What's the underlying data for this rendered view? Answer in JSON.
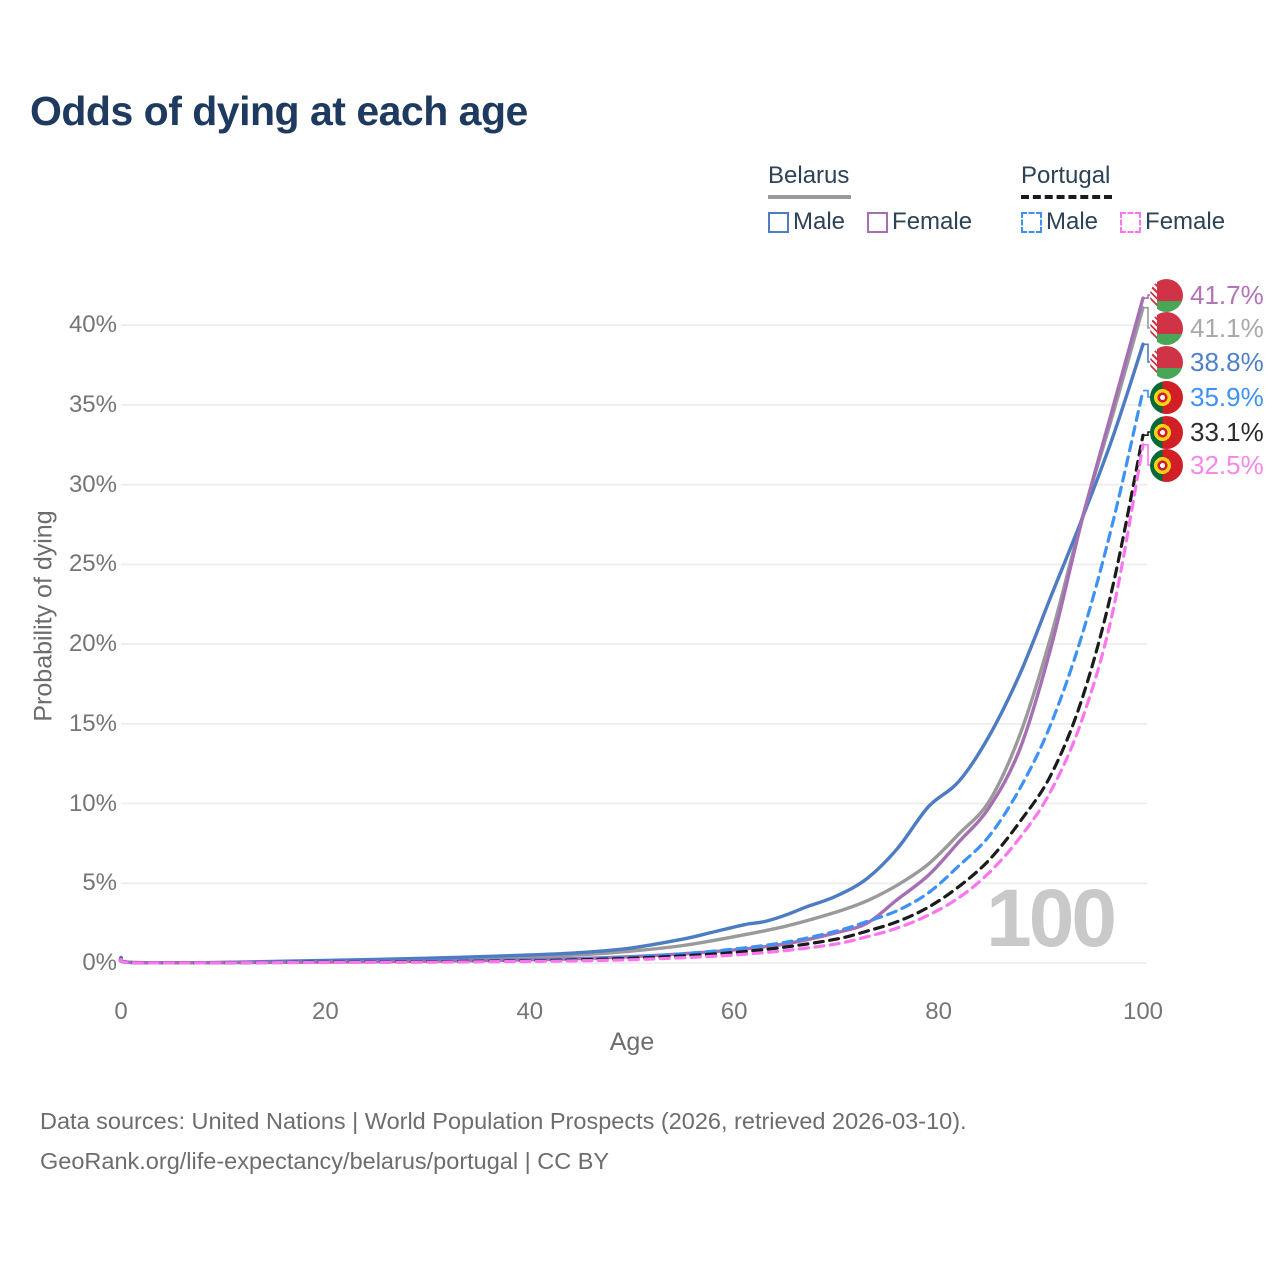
{
  "title": "Odds of dying at each age",
  "legend": {
    "groups": [
      {
        "title": "Belarus",
        "line_style": "solid",
        "combined_color": "#9a9a9a",
        "items": [
          {
            "label": "Male",
            "color": "#4d7cc3"
          },
          {
            "label": "Female",
            "color": "#a76fb3"
          }
        ]
      },
      {
        "title": "Portugal",
        "line_style": "dashed",
        "combined_color": "#1b1b1b",
        "items": [
          {
            "label": "Male",
            "color": "#3f92f5"
          },
          {
            "label": "Female",
            "color": "#fb76ee"
          }
        ]
      }
    ]
  },
  "chart_data": {
    "type": "line",
    "title": "Odds of dying at each age",
    "xlabel": "Age",
    "ylabel": "Probability of dying",
    "xlim": [
      0,
      100
    ],
    "ylim": [
      0,
      43
    ],
    "x_tick_values": [
      0,
      20,
      40,
      60,
      80,
      100
    ],
    "x_tick_labels": [
      "0",
      "20",
      "40",
      "60",
      "80",
      "100"
    ],
    "y_tick_values": [
      0,
      5,
      10,
      15,
      20,
      25,
      30,
      35,
      40
    ],
    "y_tick_labels": [
      "0%",
      "5%",
      "10%",
      "15%",
      "20%",
      "25%",
      "30%",
      "35%",
      "40%"
    ],
    "grid": "horizontal",
    "legend_position": "top-right",
    "age_indicator": "100",
    "series": [
      {
        "id": "belarus-both",
        "country": "Belarus",
        "sex": "both",
        "line": "solid",
        "color": "#9a9a9a",
        "end_value_pct": 41.1,
        "points": [
          [
            0,
            0.3
          ],
          [
            1,
            0.035
          ],
          [
            10,
            0.03
          ],
          [
            20,
            0.12
          ],
          [
            30,
            0.22
          ],
          [
            40,
            0.38
          ],
          [
            45,
            0.52
          ],
          [
            50,
            0.75
          ],
          [
            55,
            1.1
          ],
          [
            60,
            1.65
          ],
          [
            65,
            2.3
          ],
          [
            70,
            3.2
          ],
          [
            73,
            3.9
          ],
          [
            76,
            4.9
          ],
          [
            79,
            6.2
          ],
          [
            82,
            8.1
          ],
          [
            85,
            10.2
          ],
          [
            88,
            14.4
          ],
          [
            91,
            20.5
          ],
          [
            94,
            27.8
          ],
          [
            97,
            34.3
          ],
          [
            100,
            41.1
          ]
        ]
      },
      {
        "id": "belarus-male",
        "country": "Belarus",
        "sex": "male",
        "line": "solid",
        "color": "#4d7cc3",
        "end_value_pct": 38.8,
        "points": [
          [
            0,
            0.35
          ],
          [
            1,
            0.04
          ],
          [
            10,
            0.04
          ],
          [
            20,
            0.16
          ],
          [
            30,
            0.3
          ],
          [
            40,
            0.5
          ],
          [
            45,
            0.65
          ],
          [
            50,
            0.95
          ],
          [
            55,
            1.5
          ],
          [
            58,
            1.95
          ],
          [
            61,
            2.4
          ],
          [
            63,
            2.6
          ],
          [
            65,
            3.0
          ],
          [
            67,
            3.5
          ],
          [
            70,
            4.2
          ],
          [
            73,
            5.3
          ],
          [
            76,
            7.2
          ],
          [
            79,
            9.8
          ],
          [
            82,
            11.4
          ],
          [
            85,
            14.3
          ],
          [
            88,
            18.2
          ],
          [
            91,
            23.0
          ],
          [
            94,
            27.8
          ],
          [
            97,
            32.9
          ],
          [
            100,
            38.8
          ]
        ]
      },
      {
        "id": "belarus-female",
        "country": "Belarus",
        "sex": "female",
        "line": "solid",
        "color": "#a76fb3",
        "end_value_pct": 41.7,
        "points": [
          [
            0,
            0.25
          ],
          [
            1,
            0.03
          ],
          [
            10,
            0.02
          ],
          [
            20,
            0.06
          ],
          [
            30,
            0.11
          ],
          [
            40,
            0.2
          ],
          [
            45,
            0.28
          ],
          [
            50,
            0.4
          ],
          [
            55,
            0.58
          ],
          [
            60,
            0.82
          ],
          [
            65,
            1.2
          ],
          [
            70,
            1.9
          ],
          [
            73,
            2.5
          ],
          [
            76,
            4.0
          ],
          [
            79,
            5.5
          ],
          [
            82,
            7.6
          ],
          [
            85,
            9.8
          ],
          [
            88,
            13.5
          ],
          [
            91,
            19.8
          ],
          [
            94,
            27.7
          ],
          [
            97,
            34.7
          ],
          [
            100,
            41.7
          ]
        ]
      },
      {
        "id": "portugal-male",
        "country": "Portugal",
        "sex": "male",
        "line": "dashed",
        "color": "#3f92f5",
        "end_value_pct": 35.9,
        "points": [
          [
            0,
            0.3
          ],
          [
            1,
            0.025
          ],
          [
            10,
            0.015
          ],
          [
            20,
            0.07
          ],
          [
            30,
            0.11
          ],
          [
            40,
            0.18
          ],
          [
            45,
            0.26
          ],
          [
            50,
            0.38
          ],
          [
            55,
            0.58
          ],
          [
            60,
            0.88
          ],
          [
            65,
            1.3
          ],
          [
            70,
            2.0
          ],
          [
            73,
            2.6
          ],
          [
            76,
            3.3
          ],
          [
            79,
            4.4
          ],
          [
            82,
            6.1
          ],
          [
            85,
            8.0
          ],
          [
            88,
            11.0
          ],
          [
            91,
            15.0
          ],
          [
            94,
            20.5
          ],
          [
            97,
            27.5
          ],
          [
            100,
            35.9
          ]
        ]
      },
      {
        "id": "portugal-both",
        "country": "Portugal",
        "sex": "both",
        "line": "dashed",
        "color": "#1b1b1b",
        "end_value_pct": 33.1,
        "points": [
          [
            0,
            0.28
          ],
          [
            1,
            0.022
          ],
          [
            10,
            0.012
          ],
          [
            20,
            0.05
          ],
          [
            30,
            0.08
          ],
          [
            40,
            0.14
          ],
          [
            45,
            0.2
          ],
          [
            50,
            0.3
          ],
          [
            55,
            0.45
          ],
          [
            60,
            0.66
          ],
          [
            65,
            1.0
          ],
          [
            70,
            1.5
          ],
          [
            73,
            2.0
          ],
          [
            76,
            2.6
          ],
          [
            79,
            3.5
          ],
          [
            82,
            4.8
          ],
          [
            85,
            6.5
          ],
          [
            88,
            8.9
          ],
          [
            91,
            11.8
          ],
          [
            94,
            16.5
          ],
          [
            97,
            23.5
          ],
          [
            100,
            33.1
          ]
        ]
      },
      {
        "id": "portugal-female",
        "country": "Portugal",
        "sex": "female",
        "line": "dashed",
        "color": "#fb76ee",
        "end_value_pct": 32.5,
        "points": [
          [
            0,
            0.25
          ],
          [
            1,
            0.02
          ],
          [
            10,
            0.01
          ],
          [
            20,
            0.03
          ],
          [
            30,
            0.05
          ],
          [
            40,
            0.1
          ],
          [
            45,
            0.14
          ],
          [
            50,
            0.21
          ],
          [
            55,
            0.33
          ],
          [
            60,
            0.5
          ],
          [
            65,
            0.78
          ],
          [
            70,
            1.2
          ],
          [
            73,
            1.65
          ],
          [
            76,
            2.2
          ],
          [
            79,
            3.0
          ],
          [
            82,
            4.1
          ],
          [
            85,
            5.7
          ],
          [
            88,
            7.9
          ],
          [
            91,
            10.8
          ],
          [
            94,
            15.2
          ],
          [
            97,
            21.9
          ],
          [
            100,
            32.5
          ]
        ]
      }
    ]
  },
  "end_labels": [
    {
      "value": "41.7%",
      "series": "belarus-female",
      "flag": "belarus",
      "color": "#b273b8"
    },
    {
      "value": "41.1%",
      "series": "belarus-both",
      "flag": "belarus",
      "color": "#a9a9a9"
    },
    {
      "value": "38.8%",
      "series": "belarus-male",
      "flag": "belarus",
      "color": "#4e80c9"
    },
    {
      "value": "35.9%",
      "series": "portugal-male",
      "flag": "portugal",
      "color": "#3f92f5"
    },
    {
      "value": "33.1%",
      "series": "portugal-both",
      "flag": "portugal",
      "color": "#2b2b2b"
    },
    {
      "value": "32.5%",
      "series": "portugal-female",
      "flag": "portugal",
      "color": "#f787ec"
    }
  ],
  "footer": {
    "line1": "Data sources: United Nations | World Population Prospects (2026, retrieved 2026-03-10).",
    "line2": "GeoRank.org/life-expectancy/belarus/portugal | CC BY"
  }
}
